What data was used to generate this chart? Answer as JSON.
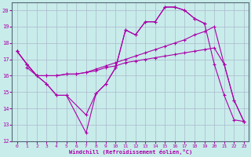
{
  "background_color": "#c8ecea",
  "grid_color": "#aab8cc",
  "line_color": "#aa00aa",
  "xlim": [
    -0.5,
    23.5
  ],
  "ylim": [
    12,
    20.5
  ],
  "yticks": [
    12,
    13,
    14,
    15,
    16,
    17,
    18,
    19,
    20
  ],
  "xticks": [
    0,
    1,
    2,
    3,
    4,
    5,
    6,
    7,
    8,
    9,
    10,
    11,
    12,
    13,
    14,
    15,
    16,
    17,
    18,
    19,
    20,
    21,
    22,
    23
  ],
  "xlabel": "Windchill (Refroidissement éolien,°C)",
  "line1_x": [
    0,
    1,
    2,
    3,
    4,
    5,
    7,
    8,
    9,
    10,
    11,
    12,
    13,
    14,
    15,
    16,
    17,
    18,
    19,
    20,
    21,
    22,
    23
  ],
  "line1_y": [
    17.5,
    16.7,
    16.0,
    15.5,
    14.8,
    14.8,
    12.5,
    14.9,
    15.5,
    16.5,
    18.8,
    18.5,
    19.3,
    19.3,
    20.2,
    20.2,
    20.0,
    19.5,
    19.2,
    16.7,
    14.8,
    13.3,
    13.2
  ],
  "line2_x": [
    0,
    1,
    2,
    3,
    4,
    5,
    6,
    7,
    8,
    9,
    10,
    11,
    12,
    13,
    14,
    15,
    16,
    17,
    18,
    19,
    20,
    21,
    22,
    23
  ],
  "line2_y": [
    17.5,
    16.7,
    16.0,
    16.0,
    16.0,
    16.1,
    16.1,
    16.2,
    16.4,
    16.6,
    16.8,
    17.0,
    17.2,
    17.4,
    17.6,
    17.8,
    18.0,
    18.2,
    18.5,
    18.7,
    19.0,
    16.7,
    14.5,
    13.2
  ],
  "line3_x": [
    0,
    1,
    2,
    3,
    4,
    5,
    6,
    7,
    8,
    9,
    10,
    11,
    12,
    13,
    14,
    15,
    16,
    17,
    18,
    19,
    20,
    21,
    22,
    23
  ],
  "line3_y": [
    17.5,
    16.7,
    16.0,
    16.0,
    16.0,
    16.1,
    16.1,
    16.2,
    16.3,
    16.5,
    16.6,
    16.8,
    16.9,
    17.0,
    17.1,
    17.2,
    17.3,
    17.4,
    17.5,
    17.6,
    17.7,
    16.7,
    14.5,
    13.2
  ],
  "line4_x": [
    1,
    2,
    3,
    4,
    5,
    7,
    8,
    9,
    10,
    11,
    12,
    13,
    14,
    15,
    16,
    17,
    18,
    19
  ],
  "line4_y": [
    16.5,
    16.0,
    15.5,
    14.8,
    14.8,
    13.6,
    14.9,
    15.5,
    16.5,
    18.8,
    18.5,
    19.3,
    19.3,
    20.2,
    20.2,
    20.0,
    19.5,
    19.2
  ]
}
